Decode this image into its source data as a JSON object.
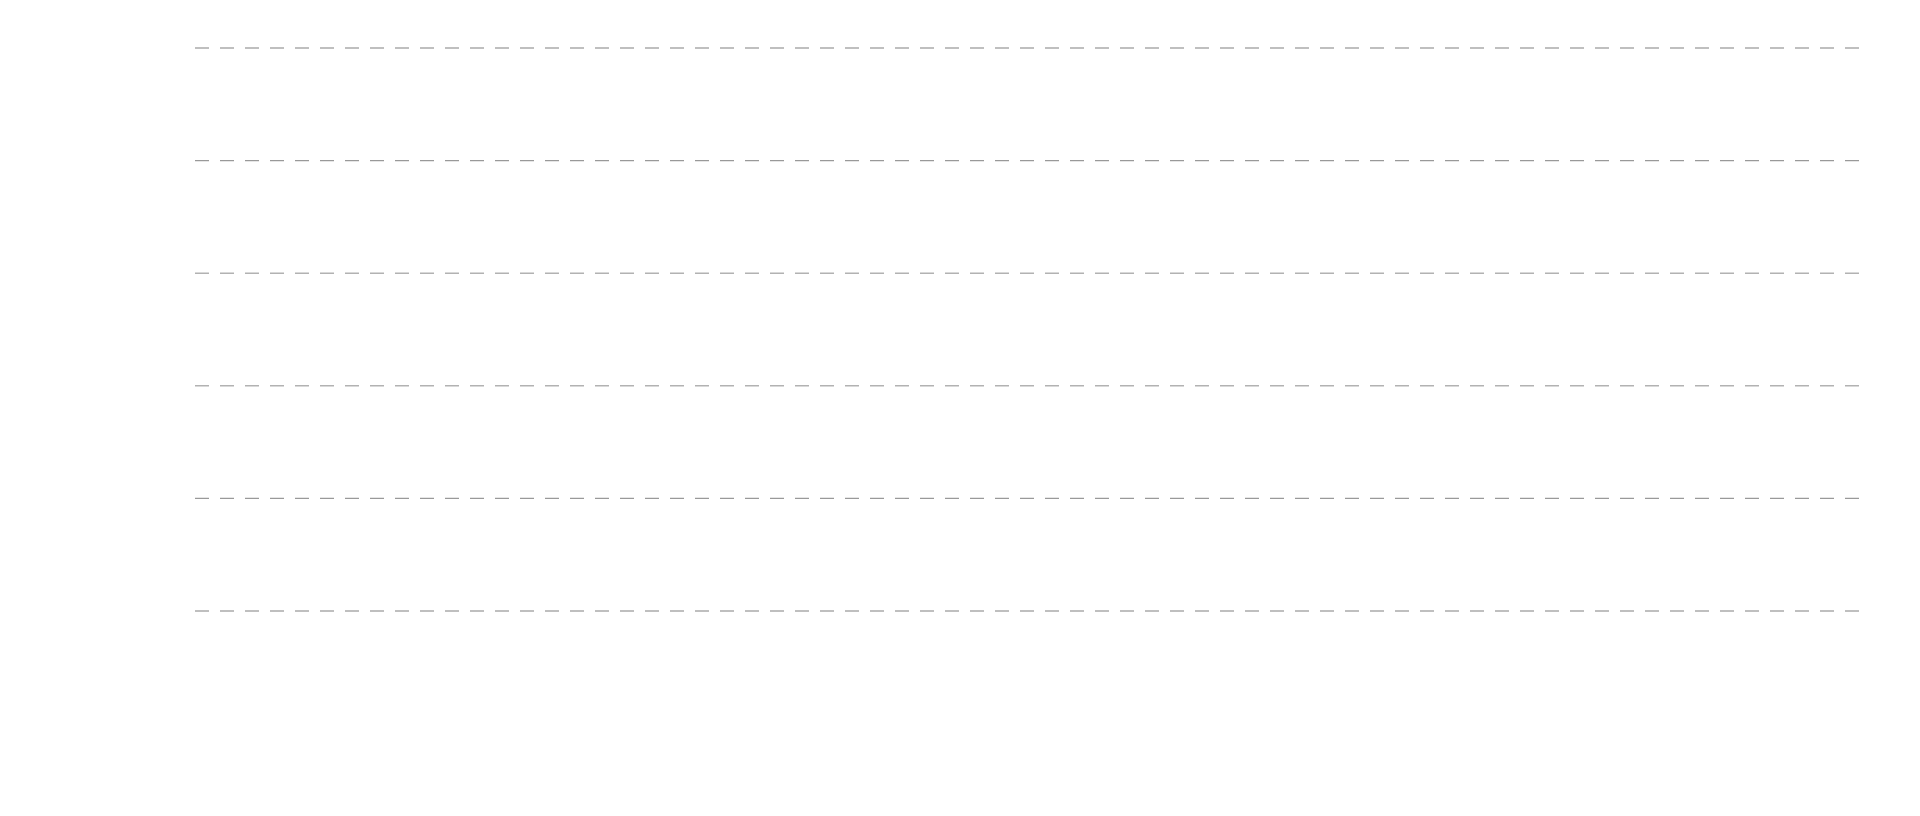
{
  "chart_data": {
    "type": "line",
    "title": "",
    "xlabel": "",
    "ylabel": "",
    "grid": true,
    "grid_style": "dashed",
    "grid_orientation": "horizontal",
    "gridline_count": 6,
    "series": [],
    "colors": {
      "background": "#ffffff",
      "gridline": "#999999"
    }
  }
}
